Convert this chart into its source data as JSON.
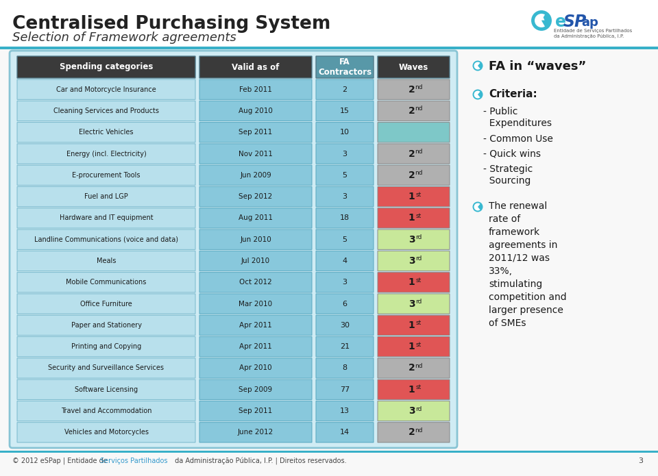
{
  "title_line1": "Centralised Purchasing System",
  "title_line2": "Selection of Framework agreements",
  "rows": [
    {
      "category": "Car and Motorcycle Insurance",
      "valid": "Feb 2011",
      "fa": "2",
      "wave": "2nd",
      "wave_color": "#b0b0b0"
    },
    {
      "category": "Cleaning Services and Products",
      "valid": "Aug 2010",
      "fa": "15",
      "wave": "2nd",
      "wave_color": "#b0b0b0"
    },
    {
      "category": "Electric Vehicles",
      "valid": "Sep 2011",
      "fa": "10",
      "wave": "",
      "wave_color": "#7ec8c8"
    },
    {
      "category": "Energy (incl. Electricity)",
      "valid": "Nov 2011",
      "fa": "3",
      "wave": "2nd",
      "wave_color": "#b0b0b0"
    },
    {
      "category": "E-procurement Tools",
      "valid": "Jun 2009",
      "fa": "5",
      "wave": "2nd",
      "wave_color": "#b0b0b0"
    },
    {
      "category": "Fuel and LGP",
      "valid": "Sep 2012",
      "fa": "3",
      "wave": "1st",
      "wave_color": "#e05555"
    },
    {
      "category": "Hardware and IT equipment",
      "valid": "Aug 2011",
      "fa": "18",
      "wave": "1st",
      "wave_color": "#e05555"
    },
    {
      "category": "Landline Communications (voice and data)",
      "valid": "Jun 2010",
      "fa": "5",
      "wave": "3rd",
      "wave_color": "#c8e89a"
    },
    {
      "category": "Meals",
      "valid": "Jul 2010",
      "fa": "4",
      "wave": "3rd",
      "wave_color": "#c8e89a"
    },
    {
      "category": "Mobile Communications",
      "valid": "Oct 2012",
      "fa": "3",
      "wave": "1st",
      "wave_color": "#e05555"
    },
    {
      "category": "Office Furniture",
      "valid": "Mar 2010",
      "fa": "6",
      "wave": "3rd",
      "wave_color": "#c8e89a"
    },
    {
      "category": "Paper and Stationery",
      "valid": "Apr 2011",
      "fa": "30",
      "wave": "1st",
      "wave_color": "#e05555"
    },
    {
      "category": "Printing and Copying",
      "valid": "Apr 2011",
      "fa": "21",
      "wave": "1st",
      "wave_color": "#e05555"
    },
    {
      "category": "Security and Surveillance Services",
      "valid": "Apr 2010",
      "fa": "8",
      "wave": "2nd",
      "wave_color": "#b0b0b0"
    },
    {
      "category": "Software Licensing",
      "valid": "Sep 2009",
      "fa": "77",
      "wave": "1st",
      "wave_color": "#e05555"
    },
    {
      "category": "Travel and Accommodation",
      "valid": "Sep 2011",
      "fa": "13",
      "wave": "3rd",
      "wave_color": "#c8e89a"
    },
    {
      "category": "Vehicles and Motorcycles",
      "valid": "June 2012",
      "fa": "14",
      "wave": "2nd",
      "wave_color": "#b0b0b0"
    }
  ],
  "page_bg": "#f0f0f0",
  "table_outer_bg": "#d8f0f4",
  "table_outer_border": "#88c8d8",
  "header_dark": "#3a3a3a",
  "header_teal": "#5898a8",
  "cell_light_blue": "#aad8e8",
  "cell_mid_blue": "#78c0d8",
  "footer_text": "© 2012 eSPap | Entidade de Serviços Partilhados da Administração Pública, I.P. | Direitos reservados.",
  "page_num": "3",
  "side_fa_title": "FA in “waves”",
  "side_criteria_title": "Criteria:",
  "side_criteria": [
    "- Public\n  Expenditures",
    "- Common Use",
    "- Quick wins",
    "- Strategic\n  Sourcing"
  ],
  "side_renewal": "The renewal\nrate of\nframework\nagreements in\n2011/12 was\n33%,\nstimulating\ncompetition and\nlarger presence\nof SMEs"
}
